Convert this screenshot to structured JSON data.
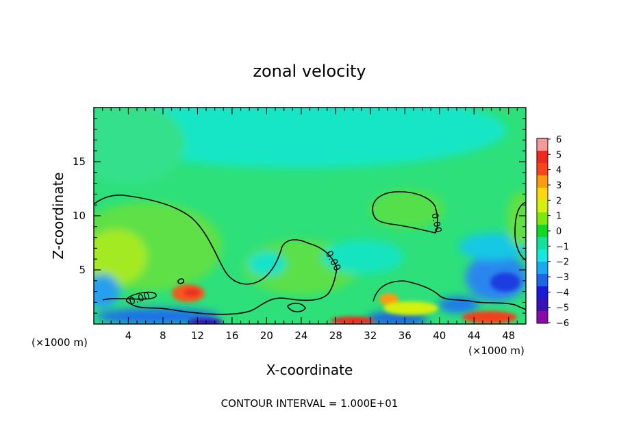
{
  "chart_data": {
    "type": "heatmap",
    "title": "zonal velocity",
    "xlabel": "X-coordinate",
    "ylabel": "Z-coordinate",
    "x_unit": "(×1000 m)",
    "xlim": [
      0,
      50
    ],
    "ylim": [
      0,
      20
    ],
    "x_ticks": [
      4,
      8,
      12,
      16,
      20,
      24,
      28,
      32,
      36,
      40,
      44,
      48
    ],
    "y_ticks": [
      5,
      10,
      15
    ],
    "colorbar": {
      "ticks": [
        6,
        5,
        4,
        3,
        2,
        1,
        0,
        -1,
        -2,
        -3,
        -4,
        -5,
        -6
      ],
      "labels": [
        "6",
        "5",
        "4",
        "3",
        "2",
        "1",
        "0",
        "−1",
        "−2",
        "−3",
        "−4",
        "−5",
        "−6"
      ],
      "colors": [
        "#f49a9a",
        "#ee2a20",
        "#f8441c",
        "#fc9a10",
        "#fcd80c",
        "#d4f00c",
        "#7ce80c",
        "#10d820",
        "#10e29a",
        "#12e8dc",
        "#18a8f4",
        "#1e66e8",
        "#1a1ad8",
        "#3a10b8",
        "#8a0aa8"
      ]
    },
    "contour_labels": [
      "0.00",
      "0.00",
      "0.00"
    ],
    "contour_interval_text": "CONTOUR INTERVAL = 1.000E+01"
  }
}
